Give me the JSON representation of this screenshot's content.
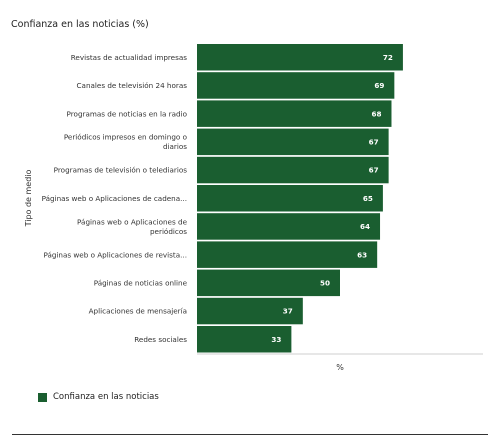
{
  "chart_data": {
    "type": "bar",
    "orientation": "horizontal",
    "title": "Confianza en las noticias (%)",
    "xlabel": "%",
    "ylabel": "Tipo de medio",
    "xlim": [
      0,
      100
    ],
    "grid": false,
    "legend_placement": "bottom-left",
    "categories": [
      [
        "Revistas de actualidad impresas"
      ],
      [
        "Canales de televisión 24 horas"
      ],
      [
        "Programas de noticias en la radio"
      ],
      [
        "Periódicos impresos en domingo o",
        "diarios"
      ],
      [
        "Programas de televisión o telediarios"
      ],
      [
        "Páginas web o Aplicaciones de cadena..."
      ],
      [
        "Páginas web o Aplicaciones de",
        "periódicos"
      ],
      [
        "Páginas web o Aplicaciones de revista..."
      ],
      [
        "Páginas de noticias online"
      ],
      [
        "Aplicaciones de mensajería"
      ],
      [
        "Redes sociales"
      ]
    ],
    "series": [
      {
        "name": "Confianza en las noticias",
        "color": "#1a5e30",
        "values": [
          72,
          69,
          68,
          67,
          67,
          65,
          64,
          63,
          50,
          37,
          33
        ]
      }
    ]
  }
}
